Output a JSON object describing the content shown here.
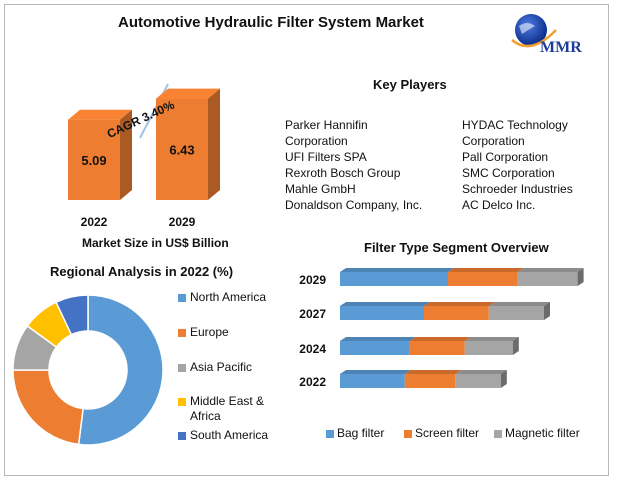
{
  "header": {
    "title": "Automotive Hydraulic Filter System Market"
  },
  "logo": {
    "text": "MMR"
  },
  "market_size": {
    "cagr_label": "CAGR 3.40%",
    "caption": "Market Size in US$ Billion",
    "bar_color": "#ED7D31"
  },
  "key_players": {
    "title": "Key Players",
    "left": [
      "Parker Hannifin",
      "Corporation",
      "UFI Filters SPA",
      "Rexroth Bosch Group",
      "Mahle GmbH",
      "Donaldson Company, Inc."
    ],
    "right": [
      "HYDAC Technology",
      "Corporation",
      "Pall Corporation",
      "SMC Corporation",
      "Schroeder Industries",
      "AC Delco Inc."
    ]
  },
  "regional": {
    "title": "Regional Analysis in 2022 (%)"
  },
  "segment": {
    "title": "Filter Type Segment Overview"
  },
  "chart_data": [
    {
      "type": "bar",
      "categories": [
        "2022",
        "2029"
      ],
      "values": [
        5.09,
        6.43
      ],
      "xlabel": "Market Size in US$ Billion",
      "annotations": [
        "CAGR 3.40%"
      ],
      "color": "#ED7D31"
    },
    {
      "type": "pie",
      "title": "Regional Analysis in 2022 (%)",
      "donut": true,
      "labels": [
        "North America",
        "Europe",
        "Asia Pacific",
        "Middle East & Africa",
        "South America"
      ],
      "legend_lines": [
        [
          "North America"
        ],
        [
          "Europe"
        ],
        [
          "Asia Pacific"
        ],
        [
          "Middle East &",
          "Africa"
        ],
        [
          "South America"
        ]
      ],
      "values": [
        52,
        23,
        10,
        8,
        7
      ],
      "colors": [
        "#5B9BD5",
        "#ED7D31",
        "#A5A5A5",
        "#FFC000",
        "#4472C4"
      ],
      "legend": "right"
    },
    {
      "type": "bar",
      "orientation": "horizontal",
      "stacked": true,
      "title": "Filter Type Segment Overview",
      "categories": [
        "2029",
        "2027",
        "2024",
        "2022"
      ],
      "series": [
        {
          "name": "Bag filter",
          "values": [
            45,
            35,
            29,
            27
          ],
          "color": "#5B9BD5"
        },
        {
          "name": "Screen filter",
          "values": [
            29,
            27,
            23,
            21
          ],
          "color": "#ED7D31"
        },
        {
          "name": "Magnetic filter",
          "values": [
            25,
            23,
            20,
            19
          ],
          "color": "#A5A5A5"
        }
      ],
      "legend": "bottom"
    }
  ]
}
